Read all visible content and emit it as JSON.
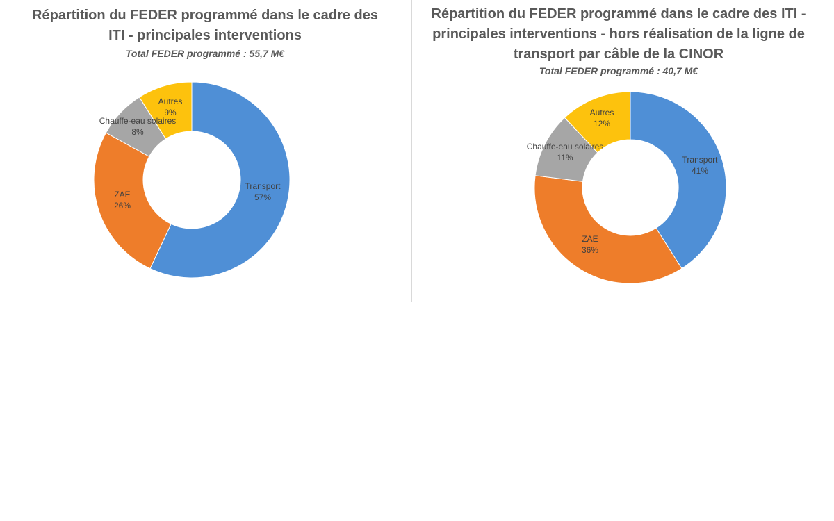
{
  "chart_data": [
    {
      "type": "pie",
      "donut": true,
      "title": "Répartition du FEDER programmé dans le cadre des ITI - principales interventions",
      "subtitle": "Total FEDER programmé : 55,7 M€",
      "slices": [
        {
          "label": "Transport",
          "value": 57,
          "value_label": "57%",
          "color": "#4f8fd6"
        },
        {
          "label": "ZAE",
          "value": 26,
          "value_label": "26%",
          "color": "#ee7d2a"
        },
        {
          "label": "Chauffe-eau solaires",
          "value": 8,
          "value_label": "8%",
          "color": "#a6a6a6"
        },
        {
          "label": "Autres",
          "value": 9,
          "value_label": "9%",
          "color": "#fdc20d"
        }
      ]
    },
    {
      "type": "pie",
      "donut": true,
      "title": "Répartition du FEDER programmé dans le cadre des ITI - principales interventions - hors réalisation de la ligne de transport par câble de la CINOR",
      "subtitle": "Total FEDER programmé : 40,7 M€",
      "slices": [
        {
          "label": "Transport",
          "value": 41,
          "value_label": "41%",
          "color": "#4f8fd6"
        },
        {
          "label": "ZAE",
          "value": 36,
          "value_label": "36%",
          "color": "#ee7d2a"
        },
        {
          "label": "Chauffe-eau solaires",
          "value": 11,
          "value_label": "11%",
          "color": "#a6a6a6"
        },
        {
          "label": "Autres",
          "value": 12,
          "value_label": "12%",
          "color": "#fdc20d"
        }
      ]
    }
  ]
}
